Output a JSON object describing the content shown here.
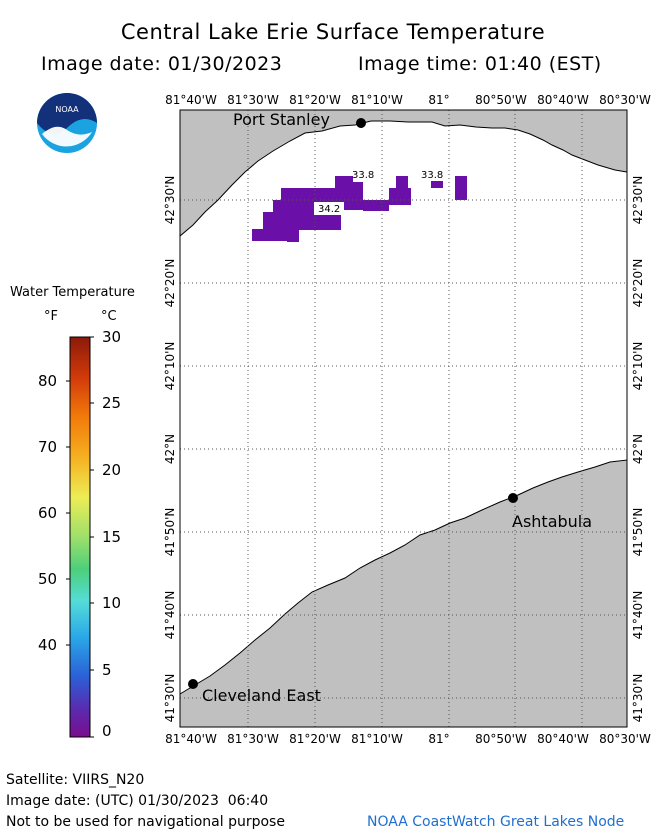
{
  "header": {
    "title": "Central Lake Erie Surface Temperature",
    "image_date": "Image date: 01/30/2023",
    "image_time": "Image time: 01:40 (EST)"
  },
  "logo": {
    "text": "NOAA"
  },
  "legend": {
    "title": "Water Temperature",
    "unit_f": "°F",
    "unit_c": "°C",
    "f_ticks": [
      "80",
      "70",
      "60",
      "50",
      "40"
    ],
    "c_ticks": [
      "30",
      "25",
      "20",
      "15",
      "10",
      "5",
      "0"
    ]
  },
  "map": {
    "lon_labels": [
      "81°40'W",
      "81°30'W",
      "81°20'W",
      "81°10'W",
      "81°",
      "80°50'W",
      "80°40'W",
      "80°30'W"
    ],
    "lat_labels": [
      "42°30'N",
      "42°20'N",
      "42°10'N",
      "42°N",
      "41°50'N",
      "41°40'N",
      "41°30'N"
    ],
    "cities": [
      {
        "name": "Port Stanley"
      },
      {
        "name": "Ashtabula"
      },
      {
        "name": "Cleveland East"
      }
    ],
    "temp_labels": [
      "33.8",
      "33.8",
      "34.2"
    ],
    "colors": {
      "land": "#c0c0c0",
      "water": "#ffffff",
      "data": "#6a0fa8",
      "grid": "#555555"
    }
  },
  "footer": {
    "satellite": "Satellite: VIIRS_N20",
    "utc_date": "Image date: (UTC) 01/30/2023  06:40",
    "disclaimer": "Not to be used for navigational purpose",
    "credit": "NOAA CoastWatch Great Lakes Node"
  }
}
